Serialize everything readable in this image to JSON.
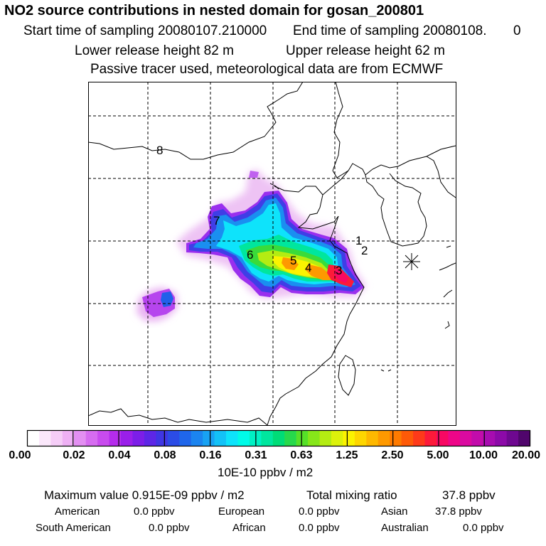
{
  "header": {
    "title": "NO2 source contributions in nested domain for gosan_200801",
    "start_label": "Start time of sampling 20080107.210000",
    "end_label": "End time of sampling 20080108.",
    "end_value": "0",
    "lower_release": "Lower release height   82 m",
    "upper_release": "Upper release height   62 m",
    "tracer_note": "Passive tracer used, meteorological data are from ECMWF"
  },
  "map": {
    "source_labels": [
      "1",
      "2",
      "3",
      "4",
      "5",
      "6",
      "7",
      "8"
    ],
    "receptor_marker": "gosan-receptor-star"
  },
  "colorbar": {
    "tick_labels": [
      "0.00",
      "0.02",
      "0.04",
      "0.08",
      "0.16",
      "0.31",
      "0.63",
      "1.25",
      "2.50",
      "5.00",
      "10.00",
      "20.00"
    ],
    "unit_label": "10E-10 ppbv / m2",
    "colors": [
      "#ffffff",
      "#fbe8fb",
      "#f5cdf7",
      "#eeb0f4",
      "#e38ff2",
      "#d66cf0",
      "#c84bee",
      "#b52cec",
      "#9a1fea",
      "#7c1ee8",
      "#5d26e6",
      "#3f36e4",
      "#2b4ce6",
      "#1f66ea",
      "#1b84ef",
      "#18a2f3",
      "#13c2f7",
      "#0ee3fb",
      "#00fbe8",
      "#00f1c4",
      "#00e69e",
      "#00dc77",
      "#27d94c",
      "#56e028",
      "#86e61a",
      "#b4ec12",
      "#dcf20b",
      "#fbf300",
      "#fed600",
      "#feb800",
      "#fe9900",
      "#fe7a00",
      "#fe5a08",
      "#fe3a1a",
      "#fc1a3a",
      "#f80863",
      "#ee0688",
      "#da0aa0",
      "#c20cab",
      "#a70cb0",
      "#8c0aa8",
      "#6e0890",
      "#50066c"
    ]
  },
  "stats": {
    "max_label": "Maximum value  0.915E-09 ppbv / m2",
    "total_label": "Total mixing ratio",
    "total_value": "37.8 ppbv"
  },
  "sources": {
    "american_label": "American",
    "american_value": "0.0 ppbv",
    "european_label": "European",
    "european_value": "0.0 ppbv",
    "asian_label": "Asian",
    "asian_value": "37.8 ppbv",
    "south_american_label": "South American",
    "south_american_value": "0.0 ppbv",
    "african_label": "African",
    "african_value": "0.0 ppbv",
    "australian_label": "Australian",
    "australian_value": "0.0 ppbv"
  }
}
